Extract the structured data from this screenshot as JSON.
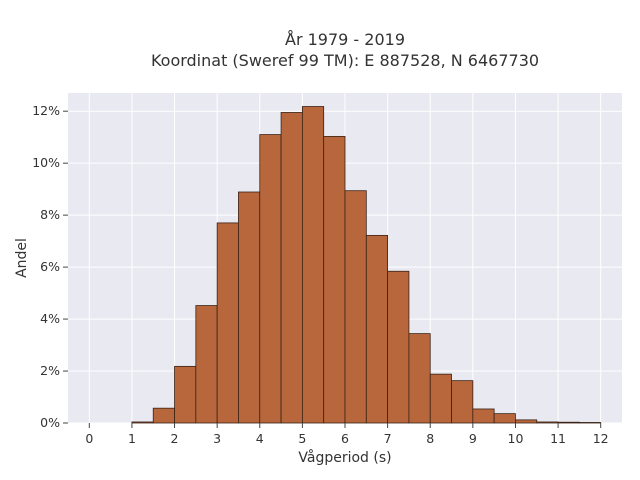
{
  "chart_data": {
    "type": "bar",
    "title_lines": [
      "År 1979 - 2019",
      "Koordinat (Sweref 99 TM): E 887528, N 6467730"
    ],
    "xlabel": "Vågperiod (s)",
    "ylabel": "Andel",
    "x_ticks": [
      0,
      1,
      2,
      3,
      4,
      5,
      6,
      7,
      8,
      9,
      10,
      11,
      12
    ],
    "x_tick_labels": [
      "0",
      "1",
      "2",
      "3",
      "4",
      "5",
      "6",
      "7",
      "8",
      "9",
      "10",
      "11",
      "12"
    ],
    "xlim": [
      -0.5,
      12.5
    ],
    "y_ticks": [
      0,
      2,
      4,
      6,
      8,
      10,
      12
    ],
    "y_tick_labels": [
      "0%",
      "2%",
      "4%",
      "6%",
      "8%",
      "10%",
      "12%"
    ],
    "ylim": [
      0,
      12.7
    ],
    "bin_width": 0.5,
    "bins": [
      {
        "start": 1.0,
        "value": 0.04
      },
      {
        "start": 1.5,
        "value": 0.57
      },
      {
        "start": 2.0,
        "value": 2.18
      },
      {
        "start": 2.5,
        "value": 4.52
      },
      {
        "start": 3.0,
        "value": 7.7
      },
      {
        "start": 3.5,
        "value": 8.89
      },
      {
        "start": 4.0,
        "value": 11.1
      },
      {
        "start": 4.5,
        "value": 11.95
      },
      {
        "start": 5.0,
        "value": 12.18
      },
      {
        "start": 5.5,
        "value": 11.03
      },
      {
        "start": 6.0,
        "value": 8.94
      },
      {
        "start": 6.5,
        "value": 7.22
      },
      {
        "start": 7.0,
        "value": 5.84
      },
      {
        "start": 7.5,
        "value": 3.44
      },
      {
        "start": 8.0,
        "value": 1.88
      },
      {
        "start": 8.5,
        "value": 1.63
      },
      {
        "start": 9.0,
        "value": 0.54
      },
      {
        "start": 9.5,
        "value": 0.36
      },
      {
        "start": 10.0,
        "value": 0.12
      },
      {
        "start": 10.5,
        "value": 0.04
      },
      {
        "start": 11.0,
        "value": 0.03
      },
      {
        "start": 11.5,
        "value": 0.02
      }
    ],
    "grid": true,
    "colors": {
      "bar": "#b8673d",
      "bar_edge": "#3a2215",
      "plot_bg": "#e9e9f1",
      "grid": "#ffffff"
    }
  }
}
